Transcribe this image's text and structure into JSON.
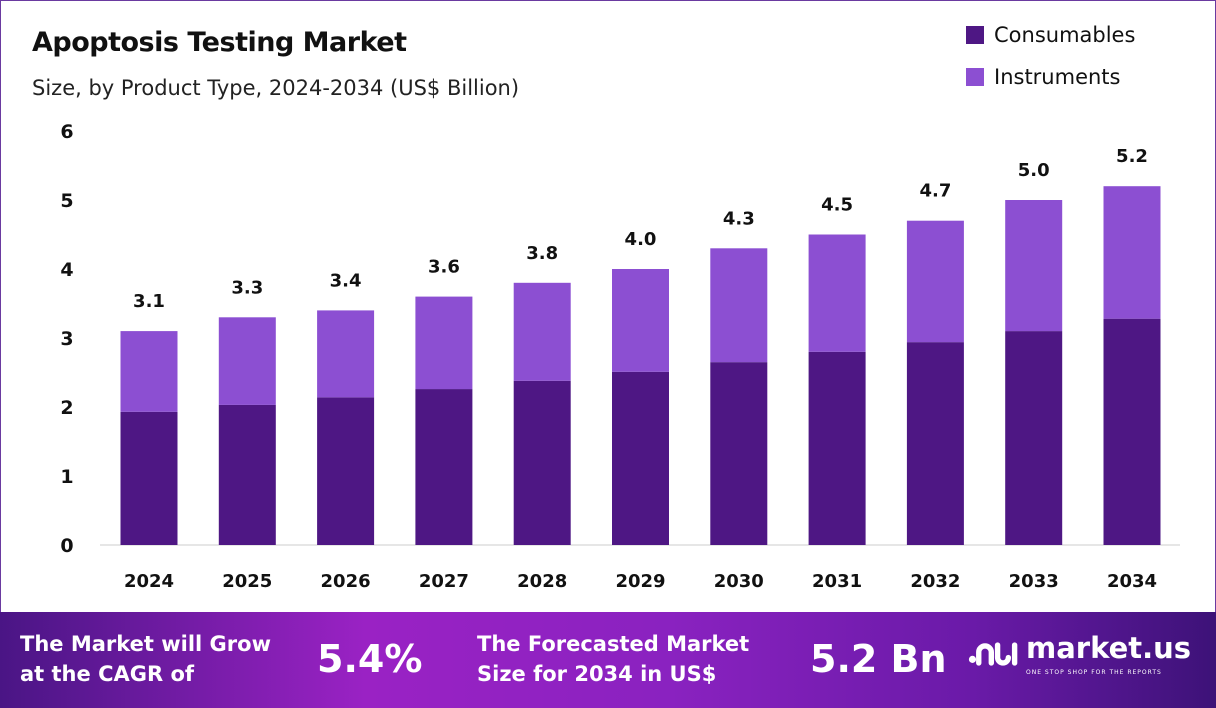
{
  "title": "Apoptosis Testing Market",
  "subtitle": "Size, by Product Type, 2024-2034 (US$ Billion)",
  "colors": {
    "consumables": "#4e1784",
    "instruments": "#8c4fd2",
    "accent": "#9a22c4"
  },
  "chart_data": {
    "type": "bar",
    "stacked": true,
    "categories": [
      "2024",
      "2025",
      "2026",
      "2027",
      "2028",
      "2029",
      "2030",
      "2031",
      "2032",
      "2033",
      "2034"
    ],
    "series": [
      {
        "name": "Consumables",
        "values": [
          1.93,
          2.03,
          2.14,
          2.26,
          2.38,
          2.51,
          2.65,
          2.8,
          2.94,
          3.1,
          3.28
        ]
      },
      {
        "name": "Instruments",
        "values": [
          1.17,
          1.27,
          1.26,
          1.34,
          1.42,
          1.49,
          1.65,
          1.7,
          1.76,
          1.9,
          1.92
        ]
      }
    ],
    "totals": [
      "3.1",
      "3.3",
      "3.4",
      "3.6",
      "3.8",
      "4.0",
      "4.3",
      "4.5",
      "4.7",
      "5.0",
      "5.2"
    ],
    "ylim": [
      0,
      6
    ],
    "yticks": [
      "0",
      "1",
      "2",
      "3",
      "4",
      "5",
      "6"
    ],
    "grid": false,
    "legend": "top-right"
  },
  "footer": {
    "cagr_label": [
      "The Market will Grow",
      "at the CAGR of"
    ],
    "cagr_value": "5.4%",
    "forecast_label": [
      "The Forecasted Market",
      "Size for 2034 in US$"
    ],
    "forecast_value": "5.2 Bn",
    "logo_text": "market.us",
    "logo_tagline": "ONE STOP SHOP FOR THE REPORTS"
  }
}
